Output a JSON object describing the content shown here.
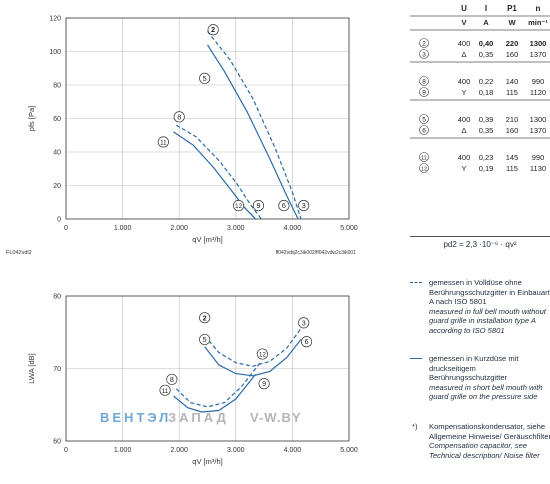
{
  "colors": {
    "curve": "#2b6aa8",
    "axis": "#333333",
    "grid": "#bfbfbf",
    "text": "#1f2d3d",
    "watermark_blue": "#6fa8d6",
    "watermark_grey": "#b5b5b5"
  },
  "table": {
    "headers": [
      "U",
      "I",
      "P1",
      "n"
    ],
    "units": [
      "V",
      "A",
      "W",
      "min⁻¹"
    ],
    "groups": [
      [
        {
          "id": "2",
          "mode": "",
          "U": "400",
          "I": "0,40",
          "P": "220",
          "n": "1300",
          "bold": true
        },
        {
          "id": "3",
          "mode": "Δ",
          "U": "",
          "I": "0,35",
          "P": "160",
          "n": "1370",
          "bold": false
        }
      ],
      [
        {
          "id": "8",
          "mode": "",
          "U": "400",
          "I": "0,22",
          "P": "140",
          "n": "990",
          "bold": false
        },
        {
          "id": "9",
          "mode": "Y",
          "U": "",
          "I": "0,18",
          "P": "115",
          "n": "1120",
          "bold": false
        }
      ],
      [
        {
          "id": "5",
          "mode": "",
          "U": "400",
          "I": "0,39",
          "P": "210",
          "n": "1300",
          "bold": false
        },
        {
          "id": "6",
          "mode": "Δ",
          "U": "",
          "I": "0,35",
          "P": "160",
          "n": "1370",
          "bold": false
        }
      ],
      [
        {
          "id": "11",
          "mode": "",
          "U": "400",
          "I": "0,23",
          "P": "145",
          "n": "990",
          "bold": false
        },
        {
          "id": "12",
          "mode": "Y",
          "U": "",
          "I": "0,19",
          "P": "115",
          "n": "1130",
          "bold": false
        }
      ]
    ]
  },
  "pressure_formula": "pd2 = 2,3 ·10⁻⁶ · qv²",
  "legend": {
    "dashed_de": "gemessen in Volldüse ohne Berührungsschutzgitter in Einbauart A nach ISO 5801",
    "dashed_en": "measured in full bell mouth without guard grille in installation type A according to ISO 5801",
    "solid_de": "gemessen in Kurzdüse mit druckseitigem Berührungsschutzgitter",
    "solid_en": "measured in short bell mouth with guard grille on the pressure side",
    "note_mark": "*)",
    "note_de": "Kompensationskondensator, siehe Allgemeine Hinweise/ Geräuschfilter",
    "note_en": "Compensation capacitor, see Technical description/ Noise filter"
  },
  "labels": {
    "top_left": "FL042vdl2",
    "top_right": "ff042vdq2c3ik002/ff042vdw2c3ik001",
    "watermark_a": "ВЕНТЭЛ",
    "watermark_b": "ЗАПАД",
    "watermark_c": "V-W.BY"
  },
  "chart_data": [
    {
      "type": "line",
      "title": "",
      "xlabel": "qV [m³/h]",
      "ylabel": "pfs [Pa]",
      "xlim": [
        0,
        5000
      ],
      "ylim": [
        0,
        120
      ],
      "x_ticks": [
        "0",
        "1.000",
        "2.000",
        "3.000",
        "4.000",
        "5.000"
      ],
      "y_ticks": [
        "0",
        "20",
        "40",
        "60",
        "80",
        "100",
        "120"
      ],
      "grid": true,
      "series": [
        {
          "name": "2",
          "dashed": true,
          "x": [
            2500,
            2900,
            3300,
            3700,
            4000,
            4150
          ],
          "y": [
            112,
            95,
            72,
            42,
            16,
            0
          ],
          "label_at": [
            2600,
            113
          ]
        },
        {
          "name": "3",
          "dashed": true,
          "x": [
            2500,
            2900,
            3300,
            3700,
            4000,
            4150
          ],
          "y": [
            112,
            95,
            72,
            42,
            16,
            0
          ],
          "label_at": [
            4200,
            8
          ]
        },
        {
          "name": "5",
          "dashed": false,
          "x": [
            2500,
            2800,
            3200,
            3600,
            3900,
            4100
          ],
          "y": [
            104,
            88,
            64,
            36,
            14,
            0
          ],
          "label_at": [
            2450,
            84
          ]
        },
        {
          "name": "6",
          "dashed": false,
          "x": [
            2500,
            2800,
            3200,
            3600,
            3900,
            4100
          ],
          "y": [
            104,
            88,
            64,
            36,
            14,
            0
          ],
          "label_at": [
            3850,
            8
          ]
        },
        {
          "name": "8",
          "dashed": true,
          "x": [
            1950,
            2300,
            2700,
            3000,
            3250,
            3450
          ],
          "y": [
            56,
            49,
            35,
            22,
            9,
            0
          ],
          "label_at": [
            2000,
            61
          ]
        },
        {
          "name": "9",
          "dashed": true,
          "x": [
            1950,
            2300,
            2700,
            3000,
            3250,
            3450
          ],
          "y": [
            56,
            49,
            35,
            22,
            9,
            0
          ],
          "label_at": [
            3400,
            8
          ]
        },
        {
          "name": "11",
          "dashed": false,
          "x": [
            1900,
            2250,
            2600,
            2900,
            3150,
            3350
          ],
          "y": [
            52,
            44,
            31,
            18,
            7,
            0
          ],
          "label_at": [
            1720,
            46
          ]
        },
        {
          "name": "12",
          "dashed": false,
          "x": [
            1900,
            2250,
            2600,
            2900,
            3150,
            3350
          ],
          "y": [
            52,
            44,
            31,
            18,
            7,
            0
          ],
          "label_at": [
            3050,
            8
          ]
        }
      ]
    },
    {
      "type": "line",
      "title": "",
      "xlabel": "qV [m³/h]",
      "ylabel": "LWA [dB]",
      "xlim": [
        0,
        5000
      ],
      "ylim": [
        60,
        80
      ],
      "x_ticks": [
        "0",
        "1.000",
        "2.000",
        "3.000",
        "4.000",
        "5.000"
      ],
      "y_ticks": [
        "60",
        "70",
        "80"
      ],
      "grid": true,
      "series": [
        {
          "name": "2",
          "dashed": true,
          "x": [
            2450,
            2700,
            3000,
            3300,
            3600,
            3900,
            4150
          ],
          "y": [
            74.5,
            72.2,
            70.8,
            70.3,
            71,
            72.8,
            75.5
          ],
          "label_at": [
            2450,
            77
          ]
        },
        {
          "name": "3",
          "dashed": true,
          "x": [
            2450,
            2700,
            3000,
            3300,
            3600,
            3900,
            4150
          ],
          "y": [
            74.5,
            72.2,
            70.8,
            70.3,
            71,
            72.8,
            75.5
          ],
          "label_at": [
            4200,
            76.3
          ]
        },
        {
          "name": "5",
          "dashed": false,
          "x": [
            2450,
            2700,
            3000,
            3300,
            3600,
            3900,
            4150
          ],
          "y": [
            73,
            70.5,
            69.3,
            69,
            69.6,
            71.5,
            74
          ],
          "label_at": [
            2450,
            74
          ]
        },
        {
          "name": "6",
          "dashed": false,
          "x": [
            2450,
            2700,
            3000,
            3300,
            3600,
            3900,
            4150
          ],
          "y": [
            73,
            70.5,
            69.3,
            69,
            69.6,
            71.5,
            74
          ],
          "label_at": [
            4250,
            73.7
          ]
        },
        {
          "name": "8",
          "dashed": true,
          "x": [
            1950,
            2200,
            2500,
            2800,
            3100,
            3450
          ],
          "y": [
            67.2,
            65.3,
            64.7,
            65.3,
            67.5,
            71
          ],
          "label_at": [
            1870,
            68.5
          ]
        },
        {
          "name": "9",
          "dashed": true,
          "x": [
            1950,
            2200,
            2500,
            2800,
            3100,
            3450
          ],
          "y": [
            67.2,
            65.3,
            64.7,
            65.3,
            67.5,
            71
          ],
          "label_at": [
            3500,
            67.9
          ]
        },
        {
          "name": "11",
          "dashed": false,
          "x": [
            1900,
            2150,
            2400,
            2700,
            3000,
            3350
          ],
          "y": [
            66.2,
            64.6,
            64,
            64.2,
            65.8,
            69.2
          ],
          "label_at": [
            1750,
            67
          ]
        },
        {
          "name": "12",
          "dashed": false,
          "x": [
            1900,
            2150,
            2400,
            2700,
            3000,
            3350
          ],
          "y": [
            66.2,
            64.6,
            64,
            64.2,
            65.8,
            69.2
          ],
          "label_at": [
            3470,
            72
          ]
        }
      ]
    }
  ]
}
